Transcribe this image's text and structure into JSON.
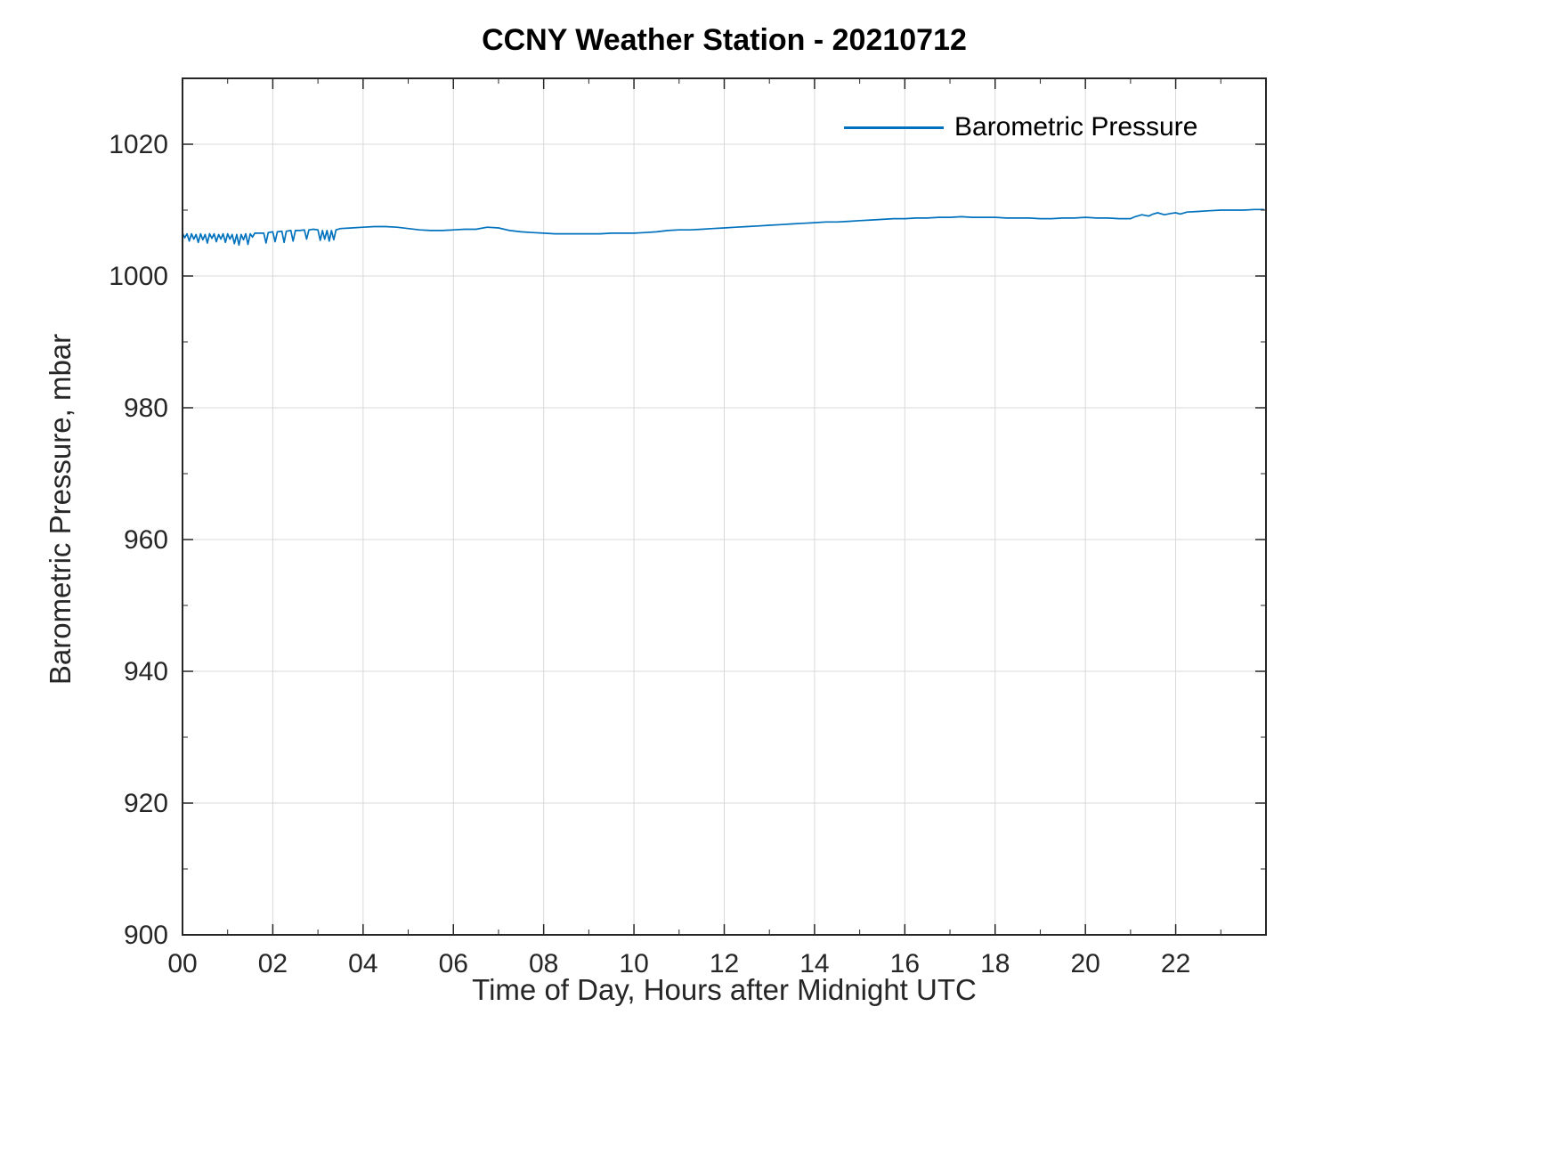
{
  "chart_data": {
    "type": "line",
    "title": "CCNY Weather Station - 20210712",
    "xlabel": "Time of Day, Hours after Midnight UTC",
    "ylabel": "Barometric Pressure, mbar",
    "xlim": [
      0,
      24
    ],
    "ylim": [
      900,
      1030
    ],
    "grid": true,
    "axis_color": "#262626",
    "grid_color": "#d9d9d9",
    "x_major_ticks": [
      0,
      2,
      4,
      6,
      8,
      10,
      12,
      14,
      16,
      18,
      20,
      22
    ],
    "x_tick_labels": [
      "00",
      "02",
      "04",
      "06",
      "08",
      "10",
      "12",
      "14",
      "16",
      "18",
      "20",
      "22"
    ],
    "x_minor_step": 1,
    "y_major_ticks": [
      900,
      920,
      940,
      960,
      980,
      1000,
      1020
    ],
    "y_tick_labels": [
      "900",
      "920",
      "940",
      "960",
      "980",
      "1000",
      "1020"
    ],
    "y_minor_step": 10,
    "legend": {
      "position": "northeast",
      "entries": [
        "Barometric Pressure"
      ]
    },
    "series": [
      {
        "name": "Barometric Pressure",
        "color": "#0072BD",
        "points": [
          [
            0,
            1006.5
          ],
          [
            0.05,
            1005.8
          ],
          [
            0.1,
            1006.4
          ],
          [
            0.15,
            1005.3
          ],
          [
            0.2,
            1006.4
          ],
          [
            0.25,
            1005.6
          ],
          [
            0.3,
            1006.3
          ],
          [
            0.35,
            1005.1
          ],
          [
            0.4,
            1006.4
          ],
          [
            0.45,
            1005.5
          ],
          [
            0.5,
            1006.3
          ],
          [
            0.55,
            1005
          ],
          [
            0.6,
            1006.4
          ],
          [
            0.65,
            1005.7
          ],
          [
            0.7,
            1006.4
          ],
          [
            0.75,
            1005.2
          ],
          [
            0.8,
            1006.3
          ],
          [
            0.85,
            1005.6
          ],
          [
            0.9,
            1006.4
          ],
          [
            0.95,
            1005.1
          ],
          [
            1,
            1006.4
          ],
          [
            1.05,
            1005.6
          ],
          [
            1.1,
            1006.3
          ],
          [
            1.15,
            1004.9
          ],
          [
            1.2,
            1006.3
          ],
          [
            1.25,
            1004.7
          ],
          [
            1.3,
            1006.3
          ],
          [
            1.35,
            1005.5
          ],
          [
            1.4,
            1006.4
          ],
          [
            1.45,
            1004.8
          ],
          [
            1.5,
            1006.4
          ],
          [
            1.55,
            1005.9
          ],
          [
            1.6,
            1006.5
          ],
          [
            1.7,
            1006.5
          ],
          [
            1.8,
            1006.5
          ],
          [
            1.85,
            1005
          ],
          [
            1.9,
            1006.6
          ],
          [
            2,
            1006.7
          ],
          [
            2.05,
            1005.2
          ],
          [
            2.1,
            1006.7
          ],
          [
            2.2,
            1006.8
          ],
          [
            2.25,
            1005.1
          ],
          [
            2.3,
            1006.8
          ],
          [
            2.4,
            1006.9
          ],
          [
            2.45,
            1005.3
          ],
          [
            2.5,
            1006.9
          ],
          [
            2.6,
            1006.9
          ],
          [
            2.7,
            1007
          ],
          [
            2.75,
            1005.6
          ],
          [
            2.8,
            1007
          ],
          [
            2.9,
            1007.1
          ],
          [
            3,
            1007
          ],
          [
            3.05,
            1005.4
          ],
          [
            3.1,
            1006.9
          ],
          [
            3.15,
            1005.6
          ],
          [
            3.2,
            1006.9
          ],
          [
            3.25,
            1005.3
          ],
          [
            3.3,
            1006.9
          ],
          [
            3.35,
            1005.5
          ],
          [
            3.4,
            1007
          ],
          [
            3.5,
            1007.2
          ],
          [
            3.75,
            1007.3
          ],
          [
            4,
            1007.4
          ],
          [
            4.25,
            1007.5
          ],
          [
            4.5,
            1007.5
          ],
          [
            4.75,
            1007.4
          ],
          [
            5,
            1007.2
          ],
          [
            5.25,
            1007
          ],
          [
            5.5,
            1006.9
          ],
          [
            5.75,
            1006.9
          ],
          [
            6,
            1007
          ],
          [
            6.25,
            1007.1
          ],
          [
            6.5,
            1007.1
          ],
          [
            6.75,
            1007.4
          ],
          [
            7,
            1007.3
          ],
          [
            7.25,
            1006.9
          ],
          [
            7.5,
            1006.7
          ],
          [
            7.75,
            1006.6
          ],
          [
            8,
            1006.5
          ],
          [
            8.25,
            1006.4
          ],
          [
            8.5,
            1006.4
          ],
          [
            8.75,
            1006.4
          ],
          [
            9,
            1006.4
          ],
          [
            9.25,
            1006.4
          ],
          [
            9.5,
            1006.5
          ],
          [
            9.75,
            1006.5
          ],
          [
            10,
            1006.5
          ],
          [
            10.25,
            1006.6
          ],
          [
            10.5,
            1006.7
          ],
          [
            10.75,
            1006.9
          ],
          [
            11,
            1007
          ],
          [
            11.25,
            1007
          ],
          [
            11.5,
            1007.1
          ],
          [
            11.75,
            1007.2
          ],
          [
            12,
            1007.3
          ],
          [
            12.25,
            1007.4
          ],
          [
            12.5,
            1007.5
          ],
          [
            12.75,
            1007.6
          ],
          [
            13,
            1007.7
          ],
          [
            13.25,
            1007.8
          ],
          [
            13.5,
            1007.9
          ],
          [
            13.75,
            1008
          ],
          [
            14,
            1008.1
          ],
          [
            14.25,
            1008.2
          ],
          [
            14.5,
            1008.2
          ],
          [
            14.75,
            1008.3
          ],
          [
            15,
            1008.4
          ],
          [
            15.25,
            1008.5
          ],
          [
            15.5,
            1008.6
          ],
          [
            15.75,
            1008.7
          ],
          [
            16,
            1008.7
          ],
          [
            16.25,
            1008.8
          ],
          [
            16.5,
            1008.8
          ],
          [
            16.75,
            1008.9
          ],
          [
            17,
            1008.9
          ],
          [
            17.25,
            1009
          ],
          [
            17.5,
            1008.9
          ],
          [
            17.75,
            1008.9
          ],
          [
            18,
            1008.9
          ],
          [
            18.25,
            1008.8
          ],
          [
            18.5,
            1008.8
          ],
          [
            18.75,
            1008.8
          ],
          [
            19,
            1008.7
          ],
          [
            19.25,
            1008.7
          ],
          [
            19.5,
            1008.8
          ],
          [
            19.75,
            1008.8
          ],
          [
            20,
            1008.9
          ],
          [
            20.25,
            1008.8
          ],
          [
            20.5,
            1008.8
          ],
          [
            20.75,
            1008.7
          ],
          [
            21,
            1008.7
          ],
          [
            21.1,
            1009
          ],
          [
            21.25,
            1009.3
          ],
          [
            21.4,
            1009.1
          ],
          [
            21.5,
            1009.4
          ],
          [
            21.6,
            1009.6
          ],
          [
            21.75,
            1009.3
          ],
          [
            21.9,
            1009.5
          ],
          [
            22,
            1009.6
          ],
          [
            22.1,
            1009.4
          ],
          [
            22.25,
            1009.7
          ],
          [
            22.5,
            1009.8
          ],
          [
            22.75,
            1009.9
          ],
          [
            23,
            1010
          ],
          [
            23.25,
            1010
          ],
          [
            23.5,
            1010
          ],
          [
            23.75,
            1010.1
          ],
          [
            23.95,
            1010.1
          ]
        ]
      }
    ]
  }
}
